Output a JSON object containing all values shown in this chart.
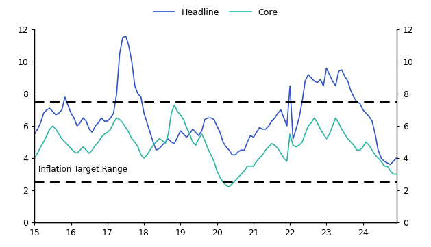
{
  "headline_color": "#3154C8",
  "core_color": "#2BB5A0",
  "target_line_color": "#000000",
  "target_upper": 7.5,
  "target_lower": 2.5,
  "target_label": "Inflation Target Range",
  "xlim": [
    15.0,
    24.92
  ],
  "ylim": [
    0,
    12
  ],
  "xticks": [
    15,
    16,
    17,
    18,
    19,
    20,
    21,
    22,
    23,
    24
  ],
  "yticks": [
    0,
    2,
    4,
    6,
    8,
    10,
    12
  ],
  "legend_labels": [
    "Headline",
    "Core"
  ],
  "headline_y": [
    5.5,
    5.8,
    6.2,
    6.8,
    7.0,
    7.1,
    6.9,
    6.7,
    6.8,
    7.0,
    7.8,
    7.3,
    6.8,
    6.5,
    6.0,
    6.2,
    6.5,
    6.3,
    5.8,
    5.6,
    6.0,
    6.2,
    6.5,
    6.3,
    6.3,
    6.5,
    6.8,
    8.0,
    10.5,
    11.5,
    11.6,
    11.0,
    10.0,
    8.5,
    8.0,
    7.8,
    6.8,
    6.2,
    5.6,
    5.0,
    4.5,
    4.6,
    4.8,
    5.0,
    5.2,
    5.0,
    4.9,
    5.3,
    5.7,
    5.5,
    5.3,
    5.5,
    5.8,
    5.6,
    5.4,
    5.7,
    6.4,
    6.5,
    6.5,
    6.4,
    6.0,
    5.6,
    5.0,
    4.7,
    4.5,
    4.2,
    4.2,
    4.4,
    4.5,
    4.5,
    5.0,
    5.4,
    5.3,
    5.6,
    5.9,
    5.8,
    5.8,
    6.0,
    6.3,
    6.5,
    6.8,
    7.0,
    6.5,
    6.0,
    8.5,
    5.2,
    5.8,
    6.5,
    7.5,
    8.8,
    9.2,
    9.0,
    8.8,
    8.7,
    8.9,
    8.5,
    9.6,
    9.2,
    8.8,
    8.5,
    9.4,
    9.5,
    9.1,
    8.8,
    8.2,
    7.8,
    7.5,
    7.4,
    7.0,
    6.8,
    6.6,
    6.3,
    5.5,
    4.5,
    4.0,
    3.8,
    3.7,
    3.6,
    3.8,
    4.0
  ],
  "core_y": [
    4.0,
    4.3,
    4.7,
    5.0,
    5.4,
    5.8,
    6.0,
    5.8,
    5.5,
    5.2,
    5.0,
    4.8,
    4.6,
    4.4,
    4.3,
    4.5,
    4.7,
    4.5,
    4.3,
    4.5,
    4.8,
    5.0,
    5.3,
    5.5,
    5.6,
    5.8,
    6.2,
    6.5,
    6.4,
    6.2,
    5.9,
    5.6,
    5.2,
    5.0,
    4.7,
    4.2,
    4.0,
    4.2,
    4.5,
    4.8,
    5.0,
    5.2,
    5.1,
    4.9,
    5.5,
    6.8,
    7.3,
    6.9,
    6.7,
    6.4,
    5.9,
    5.5,
    5.0,
    4.8,
    5.2,
    5.5,
    5.1,
    4.6,
    4.2,
    3.8,
    3.2,
    2.8,
    2.5,
    2.3,
    2.2,
    2.4,
    2.6,
    2.8,
    3.0,
    3.2,
    3.5,
    3.5,
    3.5,
    3.8,
    4.0,
    4.2,
    4.5,
    4.7,
    4.9,
    4.8,
    4.6,
    4.3,
    4.0,
    3.8,
    5.5,
    4.8,
    4.7,
    4.8,
    5.0,
    5.5,
    6.0,
    6.2,
    6.5,
    6.2,
    5.8,
    5.5,
    5.2,
    5.5,
    6.0,
    6.5,
    6.2,
    5.8,
    5.5,
    5.2,
    5.0,
    4.8,
    4.5,
    4.5,
    4.7,
    5.0,
    4.8,
    4.5,
    4.2,
    4.0,
    3.8,
    3.5,
    3.5,
    3.2,
    3.0,
    3.0
  ]
}
